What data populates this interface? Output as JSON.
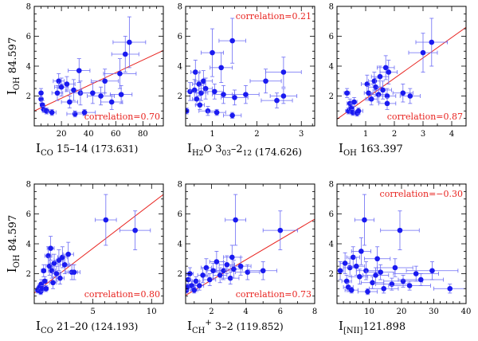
{
  "colors": {
    "points": "#1a1af0",
    "errorbars": "#6a6af5",
    "fit": "#e8231f",
    "correlation_text": "#e8231f",
    "axis": "#000000"
  },
  "chart_data": [
    {
      "type": "scatter",
      "panel": "co-15-14",
      "xlabel": {
        "sym": "I",
        "sub": "CO",
        "sub2": "",
        "tail": " 15–14",
        "wl": "(173.631)"
      },
      "ylabel": {
        "sym": "I",
        "sub": "OH",
        "tail": "84.597"
      },
      "xlim": [
        0,
        95
      ],
      "ylim": [
        0,
        8
      ],
      "xticks": [
        20,
        40,
        60,
        80
      ],
      "yticks": [
        2,
        4,
        6,
        8
      ],
      "fit": [
        [
          0,
          1.0
        ],
        [
          95,
          5.05
        ]
      ],
      "correlation": {
        "label": "correlation=0.70",
        "pos": "bottom-right"
      },
      "points": [
        {
          "x": 5,
          "y": 1.8,
          "ex": 1,
          "ey": 0.3
        },
        {
          "x": 6,
          "y": 1.4,
          "ex": 1.5,
          "ey": 0.3
        },
        {
          "x": 7,
          "y": 1.1,
          "ex": 1,
          "ey": 0.2
        },
        {
          "x": 5,
          "y": 2.2,
          "ex": 1,
          "ey": 0.3
        },
        {
          "x": 9,
          "y": 1.0,
          "ex": 2,
          "ey": 0.2
        },
        {
          "x": 13,
          "y": 0.9,
          "ex": 3,
          "ey": 0.2
        },
        {
          "x": 17,
          "y": 2.2,
          "ex": 4,
          "ey": 0.5
        },
        {
          "x": 18,
          "y": 3.0,
          "ex": 4,
          "ey": 0.5
        },
        {
          "x": 20,
          "y": 2.6,
          "ex": 5,
          "ey": 0.6
        },
        {
          "x": 24,
          "y": 2.8,
          "ex": 6,
          "ey": 0.5
        },
        {
          "x": 26,
          "y": 1.6,
          "ex": 6,
          "ey": 0.4
        },
        {
          "x": 29,
          "y": 2.4,
          "ex": 6,
          "ey": 0.7
        },
        {
          "x": 33,
          "y": 3.7,
          "ex": 8,
          "ey": 0.8
        },
        {
          "x": 34,
          "y": 2.2,
          "ex": 8,
          "ey": 0.8
        },
        {
          "x": 30,
          "y": 0.8,
          "ex": 6,
          "ey": 0.2
        },
        {
          "x": 37,
          "y": 0.9,
          "ex": 8,
          "ey": 0.2
        },
        {
          "x": 43,
          "y": 2.2,
          "ex": 9,
          "ey": 0.7
        },
        {
          "x": 49,
          "y": 2.0,
          "ex": 10,
          "ey": 0.6
        },
        {
          "x": 52,
          "y": 3.0,
          "ex": 10,
          "ey": 0.8
        },
        {
          "x": 57,
          "y": 1.6,
          "ex": 8,
          "ey": 0.5
        },
        {
          "x": 63,
          "y": 3.5,
          "ex": 12,
          "ey": 1.0
        },
        {
          "x": 67,
          "y": 4.8,
          "ex": 10,
          "ey": 1.2
        },
        {
          "x": 70,
          "y": 5.6,
          "ex": 12,
          "ey": 1.7
        },
        {
          "x": 64,
          "y": 2.1,
          "ex": 8,
          "ey": 0.6
        }
      ]
    },
    {
      "type": "scatter",
      "panel": "h2o",
      "xlabel": {
        "sym": "I",
        "sub": "H",
        "sub2": "2",
        "tail": "O  3",
        "sub3": "03",
        "tail2": "–2",
        "sub4": "12",
        "wl": "(174.626)"
      },
      "ylabel": null,
      "xlim": [
        0.4,
        3.3
      ],
      "ylim": [
        0,
        8
      ],
      "xticks": [
        1,
        2,
        3
      ],
      "yticks": [
        2,
        4,
        6,
        8
      ],
      "fit": null,
      "correlation": {
        "label": "correlation=0.21",
        "pos": "top-right"
      },
      "points": [
        {
          "x": 0.42,
          "y": 1.0,
          "ex": 0.05,
          "ey": 0.2
        },
        {
          "x": 0.5,
          "y": 2.3,
          "ex": 0.15,
          "ey": 0.6
        },
        {
          "x": 0.6,
          "y": 2.4,
          "ex": 0.1,
          "ey": 0.7
        },
        {
          "x": 0.62,
          "y": 3.6,
          "ex": 0.1,
          "ey": 0.8
        },
        {
          "x": 0.65,
          "y": 1.8,
          "ex": 0.1,
          "ey": 0.4
        },
        {
          "x": 0.7,
          "y": 2.8,
          "ex": 0.15,
          "ey": 0.8
        },
        {
          "x": 0.75,
          "y": 2.2,
          "ex": 0.15,
          "ey": 0.5
        },
        {
          "x": 0.72,
          "y": 1.4,
          "ex": 0.1,
          "ey": 0.3
        },
        {
          "x": 0.8,
          "y": 3.0,
          "ex": 0.2,
          "ey": 0.7
        },
        {
          "x": 0.85,
          "y": 2.5,
          "ex": 0.15,
          "ey": 0.7
        },
        {
          "x": 0.9,
          "y": 1.0,
          "ex": 0.2,
          "ey": 0.3
        },
        {
          "x": 1.0,
          "y": 4.9,
          "ex": 0.25,
          "ey": 1.6
        },
        {
          "x": 1.05,
          "y": 2.3,
          "ex": 0.2,
          "ey": 0.5
        },
        {
          "x": 1.1,
          "y": 0.9,
          "ex": 0.2,
          "ey": 0.2
        },
        {
          "x": 1.2,
          "y": 3.9,
          "ex": 0.25,
          "ey": 1.0
        },
        {
          "x": 1.25,
          "y": 2.1,
          "ex": 0.25,
          "ey": 0.6
        },
        {
          "x": 1.45,
          "y": 5.7,
          "ex": 0.3,
          "ey": 1.5
        },
        {
          "x": 1.5,
          "y": 1.9,
          "ex": 0.3,
          "ey": 0.5
        },
        {
          "x": 1.45,
          "y": 0.7,
          "ex": 0.2,
          "ey": 0.2
        },
        {
          "x": 1.75,
          "y": 2.1,
          "ex": 0.3,
          "ey": 0.6
        },
        {
          "x": 2.2,
          "y": 3.0,
          "ex": 0.35,
          "ey": 0.8
        },
        {
          "x": 2.6,
          "y": 3.6,
          "ex": 0.4,
          "ey": 1.0
        },
        {
          "x": 2.45,
          "y": 1.7,
          "ex": 0.35,
          "ey": 0.5
        },
        {
          "x": 2.6,
          "y": 2.0,
          "ex": 0.3,
          "ey": 0.5
        }
      ]
    },
    {
      "type": "scatter",
      "panel": "oh-163",
      "xlabel": {
        "sym": "I",
        "sub": "OH",
        "sub2": "",
        "tail": " 163.397",
        "wl": ""
      },
      "ylabel": null,
      "xlim": [
        0,
        4.5
      ],
      "ylim": [
        0,
        8
      ],
      "xticks": [
        1,
        2,
        3,
        4
      ],
      "yticks": [
        2,
        4,
        6,
        8
      ],
      "fit": [
        [
          0,
          0.45
        ],
        [
          4.5,
          6.6
        ]
      ],
      "correlation": {
        "label": "correlation=0.87",
        "pos": "bottom-right"
      },
      "points": [
        {
          "x": 0.35,
          "y": 2.2,
          "ex": 0.1,
          "ey": 0.3
        },
        {
          "x": 0.4,
          "y": 1.0,
          "ex": 0.1,
          "ey": 0.2
        },
        {
          "x": 0.45,
          "y": 1.5,
          "ex": 0.1,
          "ey": 0.3
        },
        {
          "x": 0.5,
          "y": 1.2,
          "ex": 0.1,
          "ey": 0.3
        },
        {
          "x": 0.55,
          "y": 0.9,
          "ex": 0.1,
          "ey": 0.2
        },
        {
          "x": 0.6,
          "y": 1.6,
          "ex": 0.1,
          "ey": 0.3
        },
        {
          "x": 0.7,
          "y": 0.85,
          "ex": 0.1,
          "ey": 0.2
        },
        {
          "x": 0.75,
          "y": 1.0,
          "ex": 0.15,
          "ey": 0.2
        },
        {
          "x": 1.05,
          "y": 2.8,
          "ex": 0.2,
          "ey": 0.6
        },
        {
          "x": 1.1,
          "y": 2.2,
          "ex": 0.15,
          "ey": 0.5
        },
        {
          "x": 1.2,
          "y": 1.8,
          "ex": 0.2,
          "ey": 0.4
        },
        {
          "x": 1.3,
          "y": 3.0,
          "ex": 0.2,
          "ey": 0.6
        },
        {
          "x": 1.35,
          "y": 2.6,
          "ex": 0.25,
          "ey": 0.6
        },
        {
          "x": 1.45,
          "y": 2.1,
          "ex": 0.25,
          "ey": 0.5
        },
        {
          "x": 1.5,
          "y": 3.3,
          "ex": 0.3,
          "ey": 0.7
        },
        {
          "x": 1.6,
          "y": 2.4,
          "ex": 0.3,
          "ey": 0.6
        },
        {
          "x": 1.7,
          "y": 3.9,
          "ex": 0.3,
          "ey": 0.8
        },
        {
          "x": 1.75,
          "y": 2.0,
          "ex": 0.3,
          "ey": 0.5
        },
        {
          "x": 1.8,
          "y": 3.6,
          "ex": 0.3,
          "ey": 0.8
        },
        {
          "x": 1.75,
          "y": 1.5,
          "ex": 0.3,
          "ey": 0.4
        },
        {
          "x": 2.3,
          "y": 2.2,
          "ex": 0.35,
          "ey": 0.6
        },
        {
          "x": 2.55,
          "y": 2.0,
          "ex": 0.35,
          "ey": 0.5
        },
        {
          "x": 3.0,
          "y": 4.9,
          "ex": 0.5,
          "ey": 1.3
        },
        {
          "x": 3.3,
          "y": 5.6,
          "ex": 0.55,
          "ey": 1.6
        }
      ]
    },
    {
      "type": "scatter",
      "panel": "co-21-20",
      "xlabel": {
        "sym": "I",
        "sub": "CO",
        "sub2": "",
        "tail": " 21–20",
        "wl": "(124.193)"
      },
      "ylabel": {
        "sym": "I",
        "sub": "OH",
        "tail": "84.597"
      },
      "xlim": [
        0,
        11
      ],
      "ylim": [
        0,
        8
      ],
      "xticks": [
        5,
        10
      ],
      "yticks": [
        2,
        4,
        6,
        8
      ],
      "fit": [
        [
          0,
          0.7
        ],
        [
          11,
          7.3
        ]
      ],
      "correlation": {
        "label": "correlation=0.80",
        "pos": "bottom-right"
      },
      "points": [
        {
          "x": 0.3,
          "y": 0.9,
          "ex": 0.1,
          "ey": 0.2
        },
        {
          "x": 0.45,
          "y": 1.1,
          "ex": 0.1,
          "ey": 0.2
        },
        {
          "x": 0.55,
          "y": 0.8,
          "ex": 0.1,
          "ey": 0.2
        },
        {
          "x": 0.6,
          "y": 1.3,
          "ex": 0.15,
          "ey": 0.3
        },
        {
          "x": 0.7,
          "y": 1.0,
          "ex": 0.15,
          "ey": 0.2
        },
        {
          "x": 0.8,
          "y": 2.2,
          "ex": 0.2,
          "ey": 0.4
        },
        {
          "x": 0.9,
          "y": 1.5,
          "ex": 0.2,
          "ey": 0.3
        },
        {
          "x": 1.0,
          "y": 1.0,
          "ex": 0.2,
          "ey": 0.2
        },
        {
          "x": 1.2,
          "y": 3.2,
          "ex": 0.3,
          "ey": 0.6
        },
        {
          "x": 1.3,
          "y": 2.5,
          "ex": 0.3,
          "ey": 0.6
        },
        {
          "x": 1.4,
          "y": 3.7,
          "ex": 0.3,
          "ey": 0.8
        },
        {
          "x": 1.5,
          "y": 2.2,
          "ex": 0.3,
          "ey": 0.5
        },
        {
          "x": 1.6,
          "y": 1.4,
          "ex": 0.3,
          "ey": 0.4
        },
        {
          "x": 1.7,
          "y": 2.7,
          "ex": 0.3,
          "ey": 0.6
        },
        {
          "x": 1.9,
          "y": 2.0,
          "ex": 0.35,
          "ey": 0.5
        },
        {
          "x": 2.1,
          "y": 2.9,
          "ex": 0.4,
          "ey": 0.7
        },
        {
          "x": 2.2,
          "y": 1.7,
          "ex": 0.35,
          "ey": 0.4
        },
        {
          "x": 2.4,
          "y": 3.1,
          "ex": 0.4,
          "ey": 0.7
        },
        {
          "x": 2.6,
          "y": 2.6,
          "ex": 0.4,
          "ey": 0.6
        },
        {
          "x": 2.9,
          "y": 3.3,
          "ex": 0.45,
          "ey": 0.8
        },
        {
          "x": 3.2,
          "y": 2.1,
          "ex": 0.5,
          "ey": 0.5
        },
        {
          "x": 3.4,
          "y": 2.1,
          "ex": 0.5,
          "ey": 0.5
        },
        {
          "x": 6.1,
          "y": 5.6,
          "ex": 0.9,
          "ey": 1.7
        },
        {
          "x": 8.6,
          "y": 4.9,
          "ex": 1.3,
          "ey": 1.3
        }
      ]
    },
    {
      "type": "scatter",
      "panel": "ch-plus",
      "xlabel": {
        "sym": "I",
        "sub": "CH",
        "sup": "+",
        "tail": "  3–2",
        "wl": "(119.852)"
      },
      "ylabel": null,
      "xlim": [
        0.5,
        8
      ],
      "ylim": [
        0,
        8
      ],
      "xticks": [
        2,
        4,
        6,
        8
      ],
      "yticks": [
        2,
        4,
        6,
        8
      ],
      "fit": [
        [
          0.5,
          0.55
        ],
        [
          8,
          5.65
        ]
      ],
      "correlation": {
        "label": "correlation=0.73",
        "pos": "bottom-right"
      },
      "points": [
        {
          "x": 0.55,
          "y": 0.9,
          "ex": 0.1,
          "ey": 0.2
        },
        {
          "x": 0.6,
          "y": 1.1,
          "ex": 0.1,
          "ey": 0.2
        },
        {
          "x": 0.65,
          "y": 1.6,
          "ex": 0.15,
          "ey": 0.3
        },
        {
          "x": 0.75,
          "y": 2.0,
          "ex": 0.2,
          "ey": 0.4
        },
        {
          "x": 0.85,
          "y": 1.2,
          "ex": 0.15,
          "ey": 0.3
        },
        {
          "x": 1.0,
          "y": 0.9,
          "ex": 0.2,
          "ey": 0.2
        },
        {
          "x": 1.1,
          "y": 1.5,
          "ex": 0.2,
          "ey": 0.3
        },
        {
          "x": 1.3,
          "y": 1.2,
          "ex": 0.25,
          "ey": 0.3
        },
        {
          "x": 1.5,
          "y": 1.9,
          "ex": 0.3,
          "ey": 0.5
        },
        {
          "x": 1.7,
          "y": 2.4,
          "ex": 0.3,
          "ey": 0.6
        },
        {
          "x": 1.9,
          "y": 1.6,
          "ex": 0.35,
          "ey": 0.4
        },
        {
          "x": 2.1,
          "y": 2.2,
          "ex": 0.35,
          "ey": 0.5
        },
        {
          "x": 2.3,
          "y": 2.8,
          "ex": 0.4,
          "ey": 0.7
        },
        {
          "x": 2.5,
          "y": 1.9,
          "ex": 0.4,
          "ey": 0.5
        },
        {
          "x": 2.7,
          "y": 2.2,
          "ex": 0.45,
          "ey": 0.6
        },
        {
          "x": 2.9,
          "y": 2.6,
          "ex": 0.45,
          "ey": 0.6
        },
        {
          "x": 3.1,
          "y": 1.7,
          "ex": 0.5,
          "ey": 0.4
        },
        {
          "x": 3.2,
          "y": 3.1,
          "ex": 0.5,
          "ey": 0.8
        },
        {
          "x": 3.3,
          "y": 2.3,
          "ex": 0.5,
          "ey": 0.6
        },
        {
          "x": 3.4,
          "y": 5.6,
          "ex": 0.6,
          "ey": 1.7
        },
        {
          "x": 3.7,
          "y": 2.5,
          "ex": 0.6,
          "ey": 0.6
        },
        {
          "x": 4.1,
          "y": 2.1,
          "ex": 0.7,
          "ey": 0.5
        },
        {
          "x": 5.0,
          "y": 2.2,
          "ex": 0.8,
          "ey": 0.6
        },
        {
          "x": 6.0,
          "y": 4.9,
          "ex": 1.0,
          "ey": 1.3
        }
      ]
    },
    {
      "type": "scatter",
      "panel": "nii",
      "xlabel": {
        "sym": "I",
        "sub": "[NII]",
        "sub2": "",
        "tail": "121.898",
        "wl": ""
      },
      "ylabel": null,
      "xlim": [
        0,
        40
      ],
      "ylim": [
        0,
        8
      ],
      "xticks": [
        10,
        20,
        30,
        40
      ],
      "yticks": [
        2,
        4,
        6,
        8
      ],
      "fit": null,
      "correlation": {
        "label": "correlation=−0.30",
        "pos": "top-right"
      },
      "points": [
        {
          "x": 1.0,
          "y": 2.2,
          "ex": 1,
          "ey": 0.6
        },
        {
          "x": 2.5,
          "y": 2.7,
          "ex": 1.5,
          "ey": 0.7
        },
        {
          "x": 3.0,
          "y": 1.5,
          "ex": 1.5,
          "ey": 0.4
        },
        {
          "x": 3.5,
          "y": 1.1,
          "ex": 1.5,
          "ey": 0.3
        },
        {
          "x": 4.0,
          "y": 2.4,
          "ex": 2,
          "ey": 0.6
        },
        {
          "x": 4.5,
          "y": 0.9,
          "ex": 2,
          "ey": 0.2
        },
        {
          "x": 5.0,
          "y": 3.1,
          "ex": 2,
          "ey": 0.7
        },
        {
          "x": 6.0,
          "y": 2.5,
          "ex": 2.5,
          "ey": 0.6
        },
        {
          "x": 7.0,
          "y": 1.8,
          "ex": 2.5,
          "ey": 0.5
        },
        {
          "x": 7.5,
          "y": 3.5,
          "ex": 3,
          "ey": 0.9
        },
        {
          "x": 8.5,
          "y": 5.6,
          "ex": 3,
          "ey": 1.7
        },
        {
          "x": 9.0,
          "y": 2.2,
          "ex": 3,
          "ey": 0.6
        },
        {
          "x": 9.5,
          "y": 0.8,
          "ex": 3,
          "ey": 0.2
        },
        {
          "x": 11.0,
          "y": 1.4,
          "ex": 3.5,
          "ey": 0.4
        },
        {
          "x": 12.0,
          "y": 1.9,
          "ex": 4,
          "ey": 0.5
        },
        {
          "x": 12.5,
          "y": 3.0,
          "ex": 4,
          "ey": 0.8
        },
        {
          "x": 13.5,
          "y": 2.1,
          "ex": 4.5,
          "ey": 0.5
        },
        {
          "x": 14.5,
          "y": 1.0,
          "ex": 4.5,
          "ey": 0.3
        },
        {
          "x": 17.0,
          "y": 1.3,
          "ex": 5,
          "ey": 0.4
        },
        {
          "x": 18.0,
          "y": 2.4,
          "ex": 5.5,
          "ey": 0.6
        },
        {
          "x": 19.5,
          "y": 4.9,
          "ex": 6,
          "ey": 1.3
        },
        {
          "x": 20.5,
          "y": 1.5,
          "ex": 6,
          "ey": 0.4
        },
        {
          "x": 22.5,
          "y": 1.2,
          "ex": 6.5,
          "ey": 0.3
        },
        {
          "x": 24.5,
          "y": 2.0,
          "ex": 7,
          "ey": 0.5
        },
        {
          "x": 26.0,
          "y": 1.6,
          "ex": 7,
          "ey": 0.4
        },
        {
          "x": 29.5,
          "y": 2.2,
          "ex": 8,
          "ey": 0.6
        },
        {
          "x": 35.0,
          "y": 1.0,
          "ex": 5,
          "ey": 0.3
        }
      ]
    }
  ]
}
